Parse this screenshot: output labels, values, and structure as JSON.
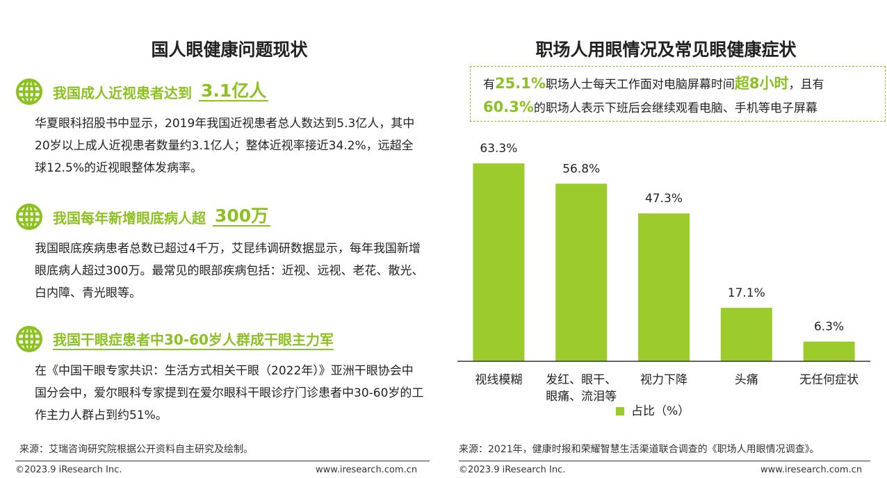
{
  "left": {
    "title": "国人眼健康问题现状",
    "blocks": [
      {
        "heading": "我国成人近视患者达到",
        "highlight": "3.1亿人",
        "body": "华夏眼科招股书中显示，2019年我国近视患者总人数达到5.3亿人，其中20岁以上成人近视患者数量约3.1亿人；整体近视率接近34.2%，远超全球12.5%的近视眼整体发病率。"
      },
      {
        "heading": "我国每年新增眼底病人超",
        "highlight": "300万",
        "body": "我国眼底疾病患者总数已超过4千万，艾昆纬调研数据显示，每年我国新增眼底病人超过300万。最常见的眼部疾病包括：近视、远视、老花、散光、白内障、青光眼等。"
      },
      {
        "heading": "我国干眼症患者中30-60岁人群成干眼主力军",
        "highlight": "",
        "body": "在《中国干眼专家共识：生活方式相关干眼（2022年）》亚洲干眼协会中国分会中，爱尔眼科专家提到在爱尔眼科干眼诊疗门诊患者中30-60岁的工作主力人群占到约51%。"
      }
    ],
    "source": "来源：艾瑞咨询研究院根据公开资料自主研究及绘制。",
    "footer_left": "©2023.9 iResearch Inc.",
    "footer_right": "www.iresearch.com.cn"
  },
  "right": {
    "title": "职场人用眼情况及常见眼健康症状",
    "callout": {
      "p1": "有",
      "h1": "25.1%",
      "p2": "职场人士每天工作面对电脑屏幕时间",
      "h2": "超8小时",
      "p3": "，且有",
      "h3": "60.3%",
      "p4": "的职场人表示下班后会继续观看电脑、手机等电子屏幕"
    },
    "source": "来源：2021年，健康时报和荣耀智慧生活渠道联合调查的《职场人用眼情况调查》。",
    "footer_left": "©2023.9 iResearch Inc.",
    "footer_right": "www.iresearch.com.cn"
  },
  "colors": {
    "accent": "#8cc121",
    "bar": "#9ccc2b",
    "text": "#222222"
  },
  "icons": {
    "block_icon": "globe-icon"
  },
  "chart_data": {
    "type": "bar",
    "categories": [
      "视线模糊",
      "发红、眼干、眼痛、流泪等",
      "视力下降",
      "头痛",
      "无任何症状"
    ],
    "category_lines": [
      [
        "视线模糊"
      ],
      [
        "发红、眼干、",
        "眼痛、流泪等"
      ],
      [
        "视力下降"
      ],
      [
        "头痛"
      ],
      [
        "无任何症状"
      ]
    ],
    "series": [
      {
        "name": "占比（%）",
        "values": [
          63.3,
          56.8,
          47.3,
          17.1,
          6.3
        ]
      }
    ],
    "value_labels": [
      "63.3%",
      "56.8%",
      "47.3%",
      "17.1%",
      "6.3%"
    ],
    "ylim": [
      0,
      70
    ],
    "legend": "bottom",
    "grid": false
  }
}
